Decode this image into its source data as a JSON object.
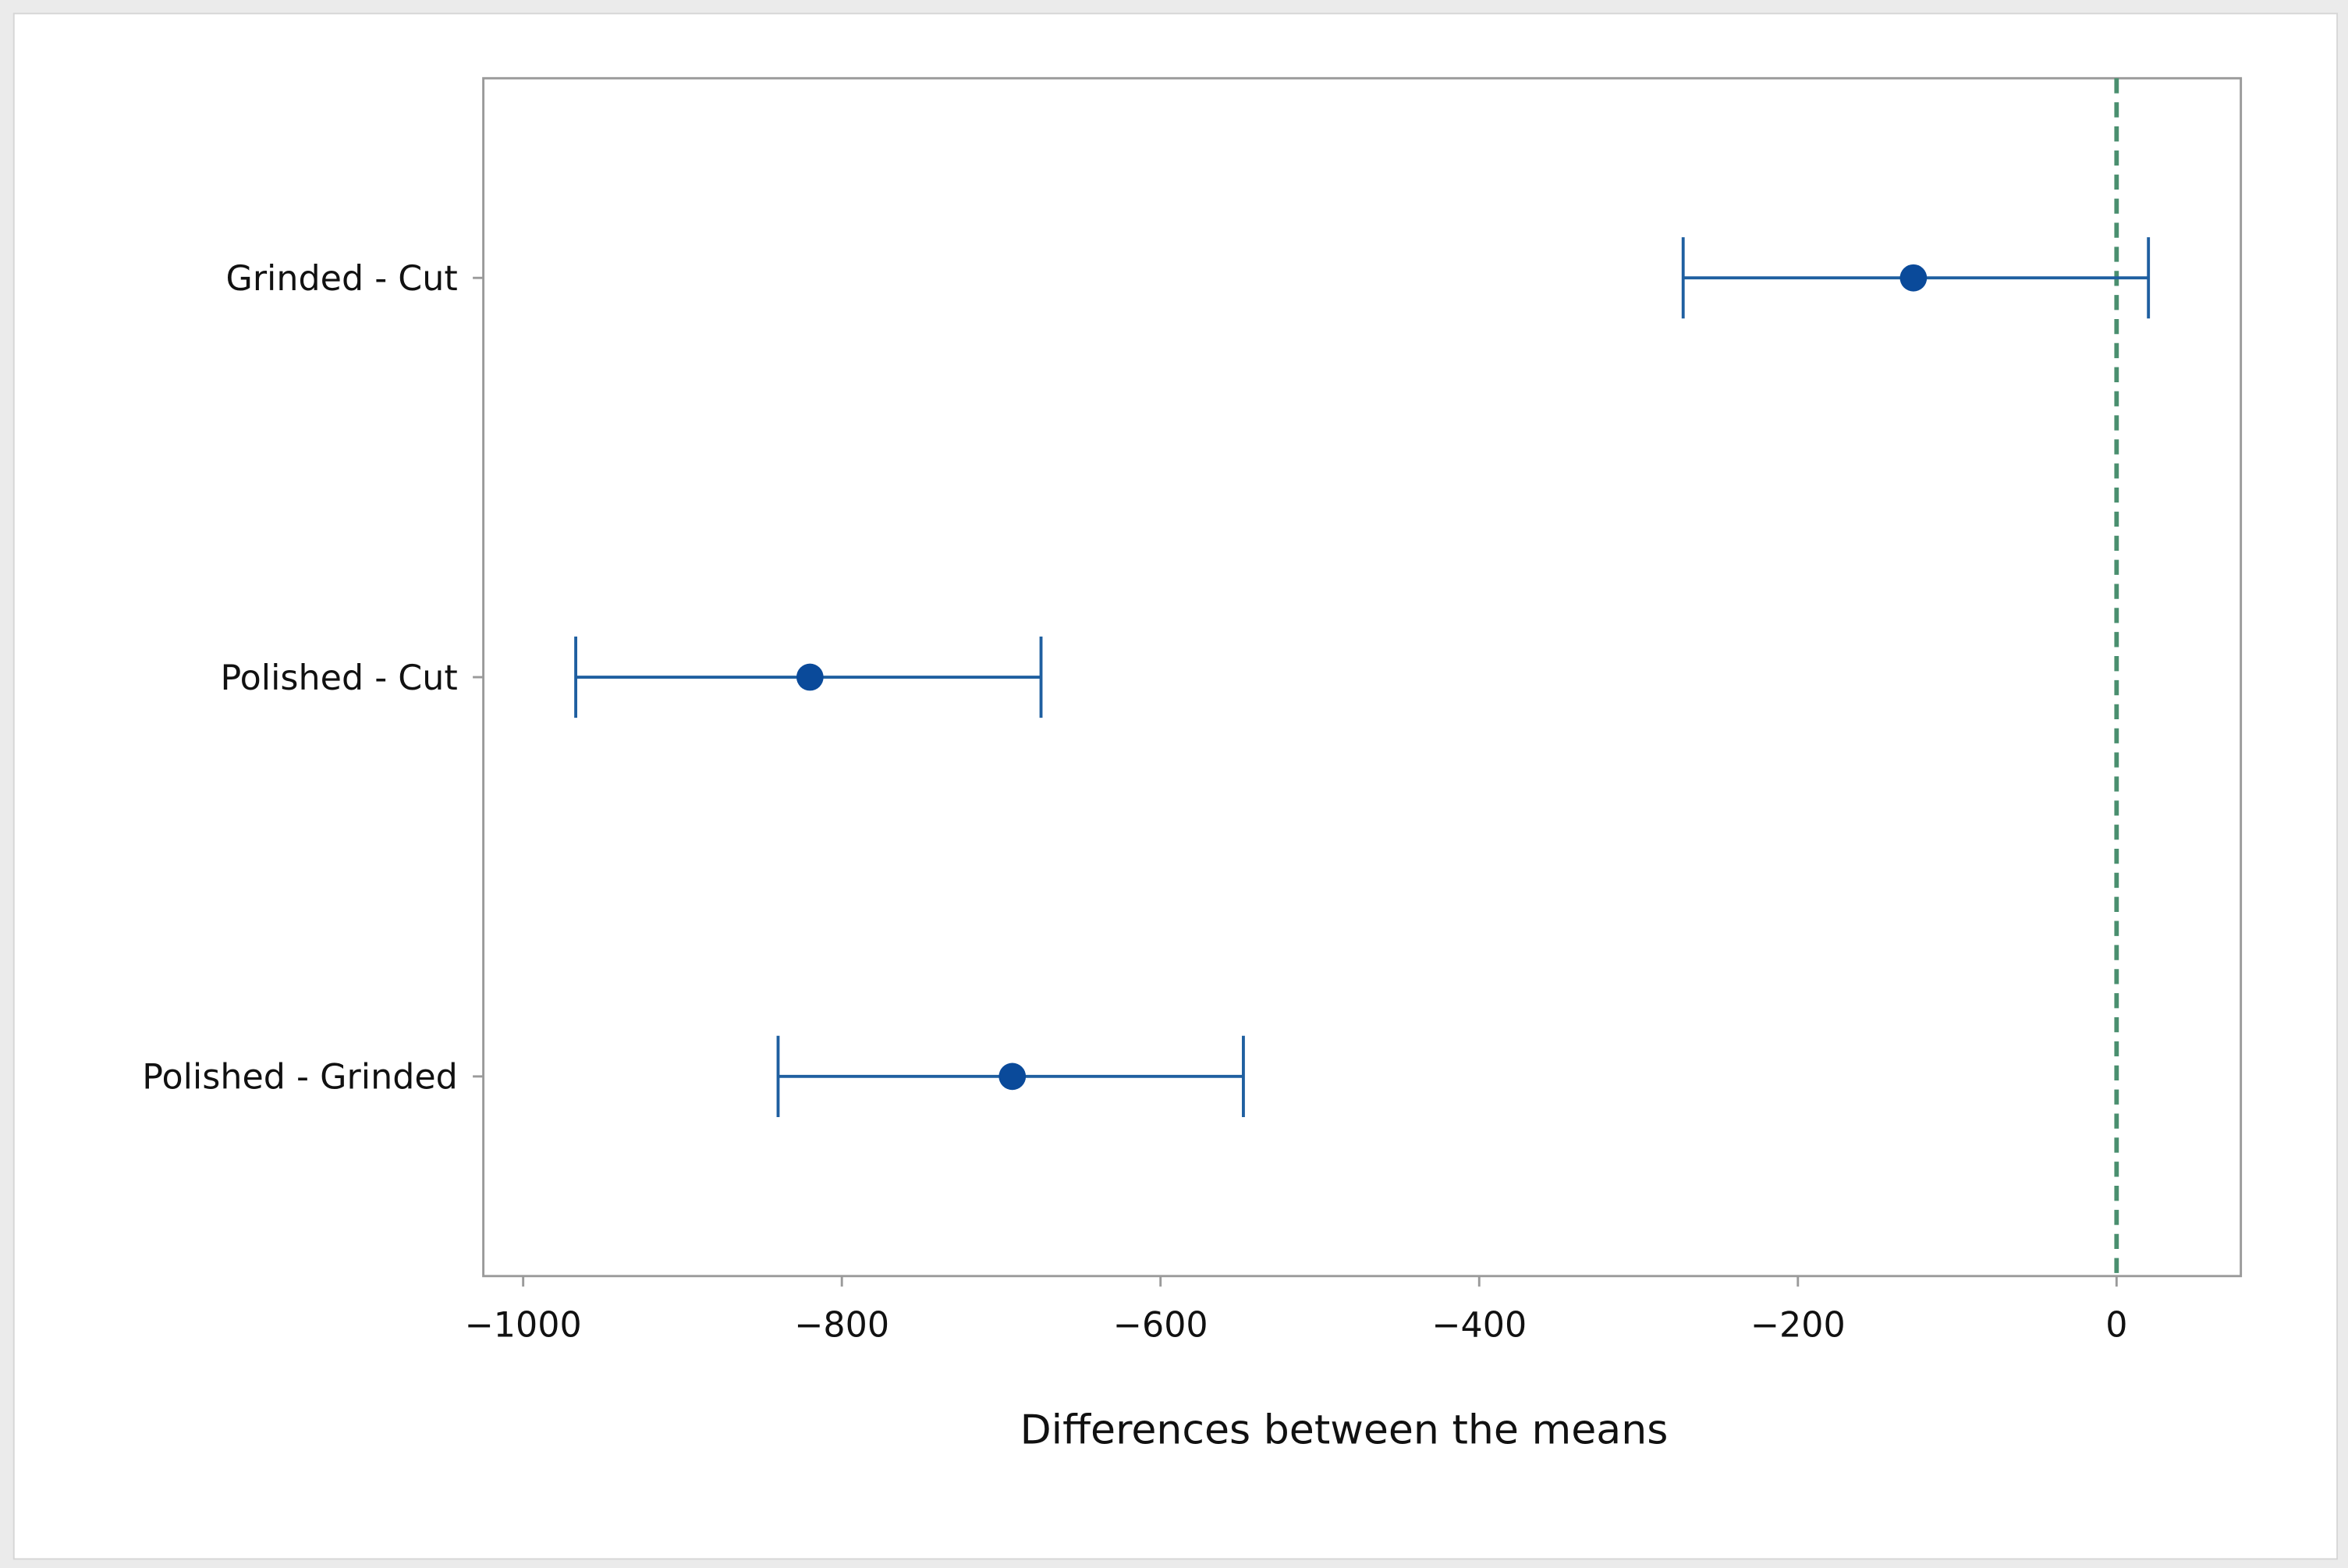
{
  "chart_data": {
    "type": "interval",
    "categories": [
      "Grinded - Cut",
      "Polished - Cut",
      "Polished - Grinded"
    ],
    "values": [
      -127.5,
      -820,
      -693
    ],
    "lower": [
      -272,
      -967,
      -840
    ],
    "upper": [
      20,
      -675,
      -548
    ],
    "color": "#1f5fa0",
    "marker_color": "#0a4a9a",
    "xlim": [
      -1025,
      78
    ],
    "xticks": [
      {
        "value": -1000,
        "label": "−1000"
      },
      {
        "value": -800,
        "label": "−800"
      },
      {
        "value": -600,
        "label": "−600"
      },
      {
        "value": -400,
        "label": "−400"
      },
      {
        "value": -200,
        "label": "−200"
      },
      0
    ],
    "reference_line": 0,
    "reference_color": "#4a8f6f",
    "x_label": "Differences between the means"
  }
}
